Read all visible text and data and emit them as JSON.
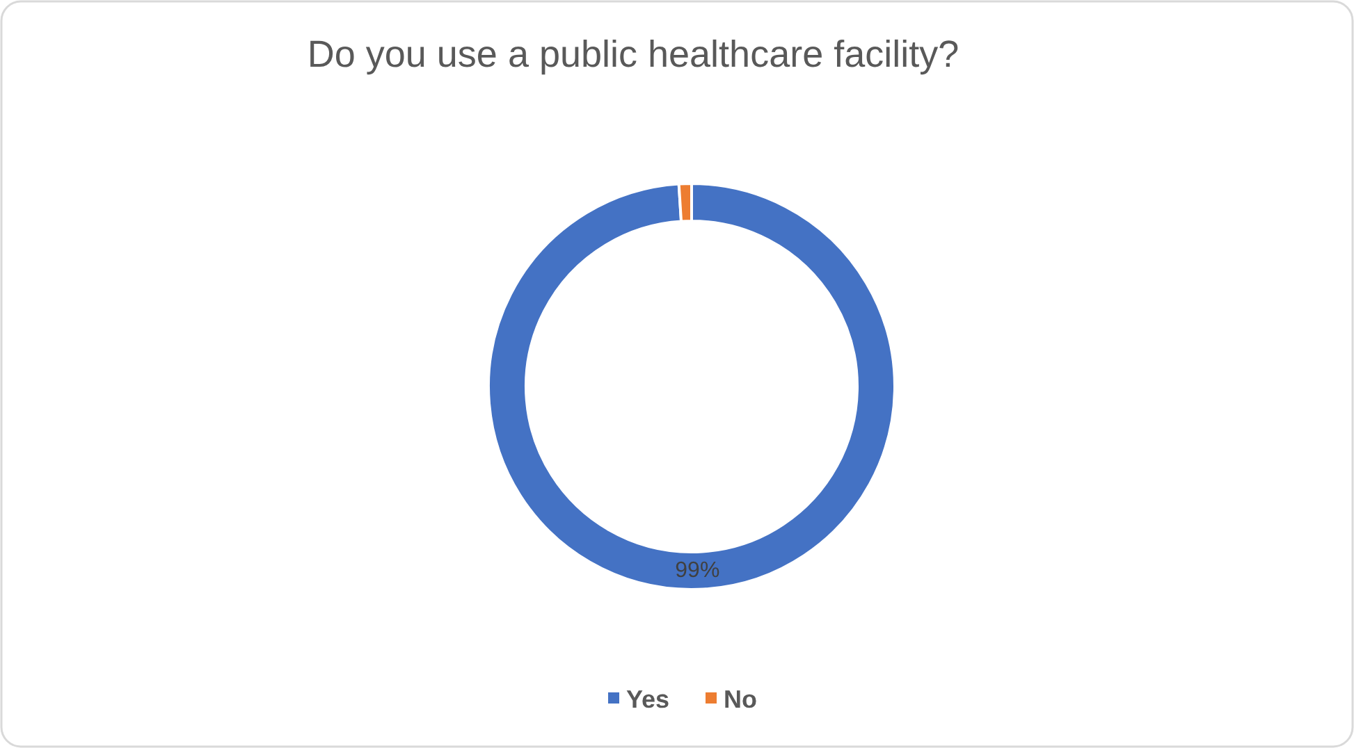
{
  "chart_data": {
    "type": "donut",
    "title": "Do you use a public healthcare facility?",
    "categories": [
      "Yes",
      "No"
    ],
    "values": [
      99,
      1
    ],
    "colors": [
      "#4472c4",
      "#ed7d31"
    ],
    "value_labels": [
      "99%",
      null
    ],
    "legend": "bottom"
  }
}
